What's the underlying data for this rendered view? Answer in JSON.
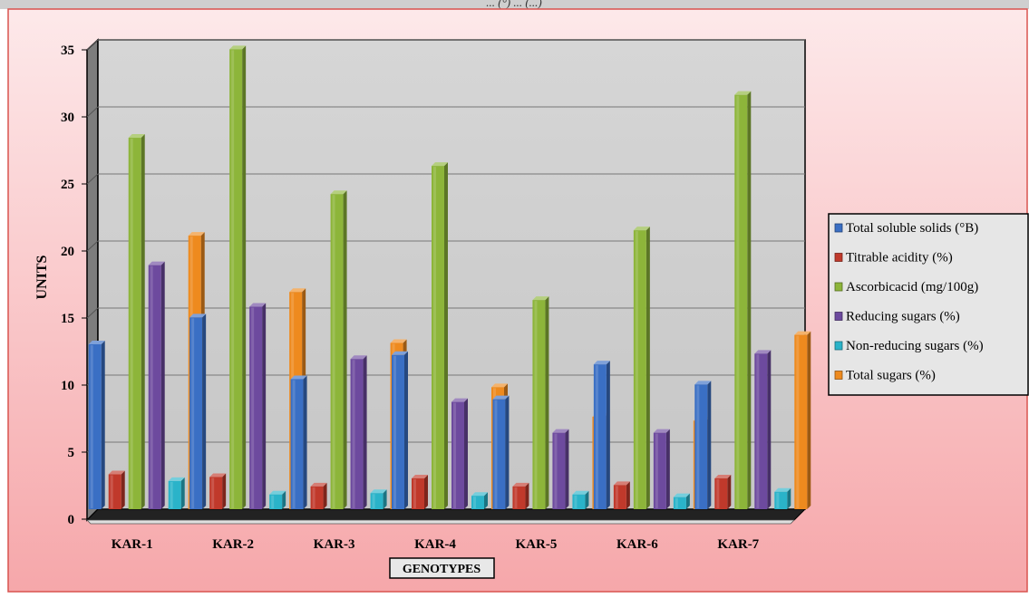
{
  "page_title_partial": "... (°) ... (...)",
  "chart_data": {
    "type": "bar",
    "title": "",
    "xlabel": "GENOTYPES",
    "ylabel": "UNITS",
    "ylim": [
      0,
      35
    ],
    "yticks": [
      0,
      5,
      10,
      15,
      20,
      25,
      30,
      35
    ],
    "grid": true,
    "legend_position": "right",
    "categories": [
      "KAR-1",
      "KAR-2",
      "KAR-3",
      "KAR-4",
      "KAR-5",
      "KAR-6",
      "KAR-7"
    ],
    "series": [
      {
        "name": "Total soluble solids (°B)",
        "color": "#3a6fc4",
        "values": [
          12.3,
          14.3,
          9.7,
          11.5,
          8.2,
          10.8,
          9.3
        ]
      },
      {
        "name": "Titrable acidity (%)",
        "color": "#c0392b",
        "values": [
          2.6,
          2.4,
          1.7,
          2.3,
          1.7,
          1.8,
          2.3
        ]
      },
      {
        "name": "Ascorbicacid (mg/100g)",
        "color": "#8db53a",
        "values": [
          27.7,
          34.3,
          23.5,
          25.6,
          15.6,
          20.8,
          30.9
        ]
      },
      {
        "name": "Reducing sugars (%)",
        "color": "#6d4a9e",
        "values": [
          18.2,
          15.1,
          11.2,
          8.0,
          5.7,
          5.7,
          11.6
        ]
      },
      {
        "name": "Non-reducing sugars (%)",
        "color": "#2ab3c9",
        "values": [
          2.1,
          1.1,
          1.2,
          1.0,
          1.1,
          0.9,
          1.3
        ]
      },
      {
        "name": "Total sugars (%)",
        "color": "#ee8a1e",
        "values": [
          20.4,
          16.2,
          12.4,
          9.1,
          6.9,
          6.6,
          13.0
        ]
      }
    ]
  }
}
